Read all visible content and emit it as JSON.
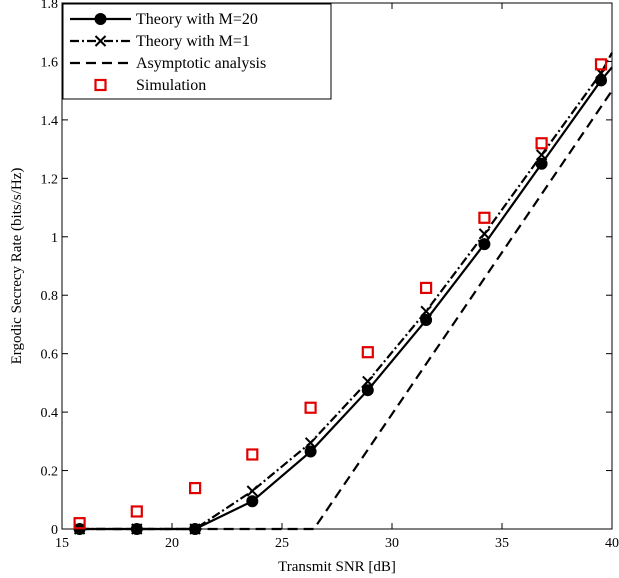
{
  "chart_data": {
    "type": "line",
    "xlabel": "Transmit SNR [dB]",
    "ylabel": "Ergodic Secrecy Rate (bits/s/Hz)",
    "xlim": [
      15,
      40
    ],
    "ylim": [
      0,
      1.8
    ],
    "xticks": [
      15,
      20,
      25,
      30,
      35,
      40
    ],
    "yticks": [
      0,
      0.2,
      0.4,
      0.6,
      0.8,
      1,
      1.2,
      1.4,
      1.6,
      1.8
    ],
    "xtick_labels": [
      "15",
      "20",
      "25",
      "30",
      "35",
      "40"
    ],
    "ytick_labels": [
      "0",
      "0.2",
      "0.4",
      "0.6",
      "0.8",
      "1",
      "1.2",
      "1.4",
      "1.6",
      "1.8"
    ],
    "grid": false,
    "legend_position": "top-left",
    "series": [
      {
        "name": "Theory with M=20",
        "style": "solid",
        "marker": "filled-circle",
        "color": "#000000",
        "x": [
          15.8,
          18.4,
          21.05,
          23.65,
          26.3,
          28.9,
          31.55,
          34.2,
          36.8,
          39.5,
          40
        ],
        "y": [
          0,
          0,
          0,
          0.095,
          0.265,
          0.475,
          0.715,
          0.975,
          1.25,
          1.535,
          1.58
        ],
        "marker_x": [
          15.8,
          18.4,
          21.05,
          23.65,
          26.3,
          28.9,
          31.55,
          34.2,
          36.8,
          39.5
        ]
      },
      {
        "name": "Theory with M=1",
        "style": "dash-dot",
        "marker": "x",
        "color": "#000000",
        "x": [
          15.8,
          18.4,
          21.05,
          23.65,
          26.3,
          28.9,
          31.55,
          34.2,
          36.8,
          39.5,
          40
        ],
        "y": [
          0,
          0,
          0,
          0.13,
          0.295,
          0.505,
          0.745,
          1.01,
          1.28,
          1.56,
          1.63
        ],
        "marker_x": [
          15.8,
          18.4,
          21.05,
          23.65,
          26.3,
          28.9,
          31.55,
          34.2,
          36.8,
          39.5
        ]
      },
      {
        "name": "Asymptotic analysis",
        "style": "dashed",
        "marker": "none",
        "color": "#000000",
        "x": [
          15.8,
          26.45,
          40
        ],
        "y": [
          0,
          0,
          1.5
        ]
      },
      {
        "name": "Simulation",
        "style": "none",
        "marker": "open-square",
        "color": "#e00000",
        "x": [
          15.8,
          18.4,
          21.05,
          23.65,
          26.3,
          28.9,
          31.55,
          34.2,
          36.8,
          39.5
        ],
        "y": [
          0.02,
          0.06,
          0.14,
          0.255,
          0.415,
          0.605,
          0.825,
          1.065,
          1.32,
          1.59
        ]
      }
    ]
  }
}
